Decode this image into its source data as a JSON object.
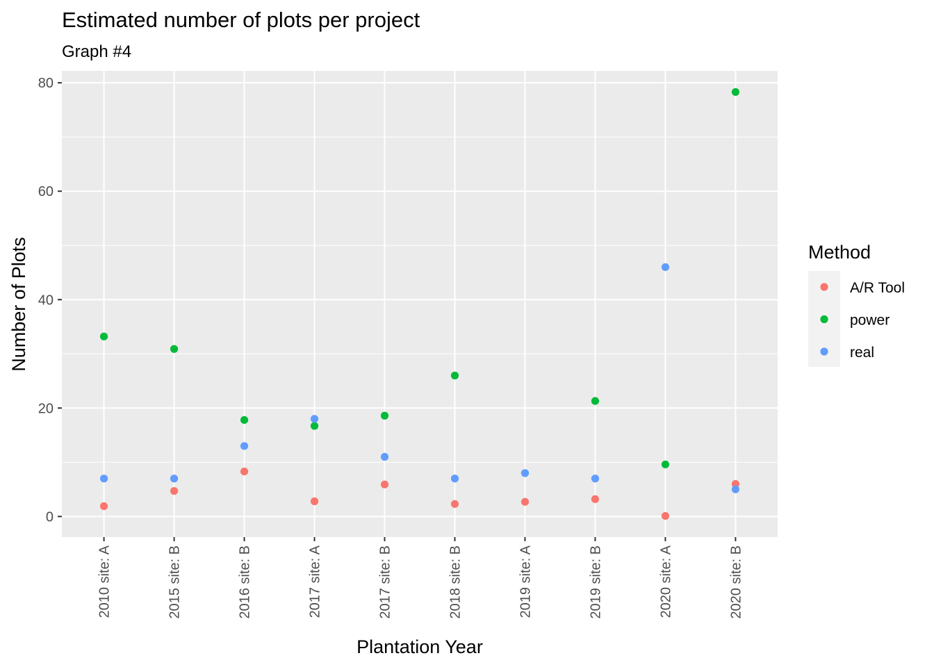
{
  "chart_data": {
    "type": "scatter",
    "title": "Estimated number of plots per project",
    "subtitle": "Graph #4",
    "xlabel": "Plantation Year",
    "ylabel": "Number of Plots",
    "categories": [
      "2010 site: A",
      "2015 site: B",
      "2016 site: B",
      "2017 site: A",
      "2017 site: B",
      "2018 site: B",
      "2019 site: A",
      "2019 site: B",
      "2020 site: A",
      "2020 site: B"
    ],
    "ylim": [
      -3.8,
      82.2
    ],
    "yticks": [
      0,
      20,
      40,
      60,
      80
    ],
    "grid": true,
    "legend": {
      "title": "Method",
      "position": "right"
    },
    "series": [
      {
        "name": "A/R Tool",
        "color": "#F8766D",
        "values": [
          1.9,
          4.7,
          8.3,
          2.8,
          5.9,
          2.3,
          2.7,
          3.2,
          0.1,
          6.0
        ]
      },
      {
        "name": "power",
        "color": "#00BA38",
        "values": [
          33.2,
          30.9,
          17.8,
          16.7,
          18.6,
          26.0,
          8.0,
          21.3,
          9.6,
          78.3
        ]
      },
      {
        "name": "real",
        "color": "#619CFF",
        "values": [
          7,
          7,
          13,
          18,
          11,
          7,
          8,
          7,
          46,
          5
        ]
      }
    ]
  }
}
